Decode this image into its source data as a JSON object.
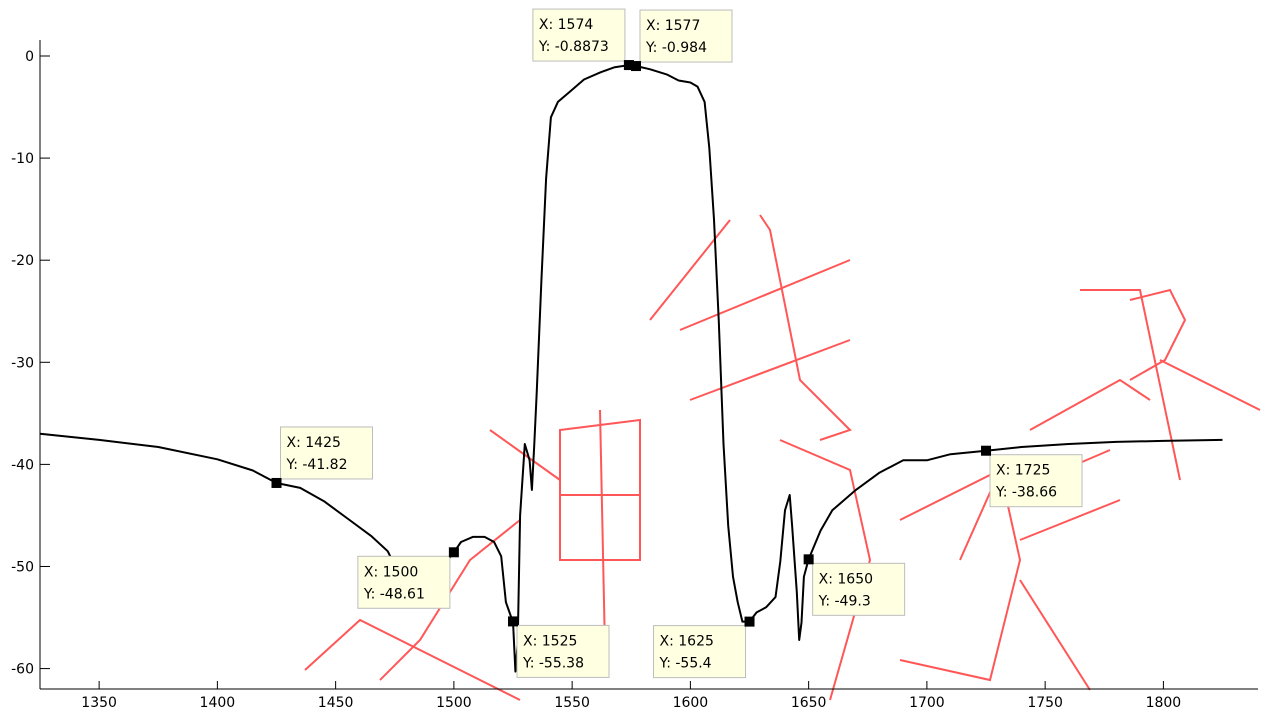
{
  "chart_data": {
    "type": "line",
    "title": "",
    "xlabel": "",
    "ylabel": "",
    "xlim": [
      1325,
      1840
    ],
    "ylim": [
      -62,
      0
    ],
    "xticks": [
      1350,
      1400,
      1450,
      1500,
      1550,
      1600,
      1650,
      1700,
      1750,
      1800
    ],
    "yticks": [
      0,
      -10,
      -20,
      -30,
      -40,
      -50,
      -60
    ],
    "grid": false,
    "series": [
      {
        "color": "#000000",
        "points": [
          [
            1325,
            -37.0
          ],
          [
            1350,
            -37.6
          ],
          [
            1375,
            -38.3
          ],
          [
            1400,
            -39.5
          ],
          [
            1415,
            -40.6
          ],
          [
            1425,
            -41.82
          ],
          [
            1435,
            -42.3
          ],
          [
            1445,
            -43.6
          ],
          [
            1455,
            -45.3
          ],
          [
            1465,
            -47.0
          ],
          [
            1472,
            -48.5
          ],
          [
            1477,
            -50.8
          ],
          [
            1480,
            -52.2
          ],
          [
            1485,
            -51.7
          ],
          [
            1490,
            -50.6
          ],
          [
            1496,
            -49.8
          ],
          [
            1500,
            -48.61
          ],
          [
            1503,
            -47.6
          ],
          [
            1508,
            -47.1
          ],
          [
            1513,
            -47.1
          ],
          [
            1517,
            -47.6
          ],
          [
            1520,
            -49.0
          ],
          [
            1522,
            -53.5
          ],
          [
            1524,
            -54.8
          ],
          [
            1525,
            -55.38
          ],
          [
            1526,
            -60.3
          ],
          [
            1527,
            -57.5
          ],
          [
            1528,
            -45.0
          ],
          [
            1530,
            -38.0
          ],
          [
            1532,
            -39.6
          ],
          [
            1533,
            -42.5
          ],
          [
            1534,
            -38.0
          ],
          [
            1535,
            -33.0
          ],
          [
            1537,
            -22.0
          ],
          [
            1539,
            -12.0
          ],
          [
            1541,
            -6.0
          ],
          [
            1544,
            -4.5
          ],
          [
            1549,
            -3.5
          ],
          [
            1555,
            -2.3
          ],
          [
            1562,
            -1.6
          ],
          [
            1568,
            -1.1
          ],
          [
            1574,
            -0.8873
          ],
          [
            1577,
            -0.984
          ],
          [
            1583,
            -1.3
          ],
          [
            1590,
            -1.8
          ],
          [
            1595,
            -2.4
          ],
          [
            1600,
            -2.6
          ],
          [
            1603,
            -3.0
          ],
          [
            1606,
            -4.5
          ],
          [
            1608,
            -9.0
          ],
          [
            1610,
            -16.0
          ],
          [
            1612,
            -26.0
          ],
          [
            1614,
            -38.0
          ],
          [
            1616,
            -46.0
          ],
          [
            1618,
            -51.0
          ],
          [
            1620,
            -53.5
          ],
          [
            1622,
            -55.4
          ],
          [
            1625,
            -55.4
          ],
          [
            1628,
            -54.5
          ],
          [
            1632,
            -54.0
          ],
          [
            1636,
            -53.0
          ],
          [
            1638,
            -49.5
          ],
          [
            1640,
            -44.5
          ],
          [
            1642,
            -43.0
          ],
          [
            1643,
            -46.0
          ],
          [
            1645,
            -52.5
          ],
          [
            1646,
            -57.2
          ],
          [
            1647,
            -55.5
          ],
          [
            1648,
            -51.0
          ],
          [
            1650,
            -49.3
          ],
          [
            1655,
            -46.5
          ],
          [
            1660,
            -44.5
          ],
          [
            1670,
            -42.5
          ],
          [
            1680,
            -40.8
          ],
          [
            1690,
            -39.6
          ],
          [
            1700,
            -39.6
          ],
          [
            1710,
            -39.0
          ],
          [
            1725,
            -38.66
          ],
          [
            1740,
            -38.3
          ],
          [
            1760,
            -38.0
          ],
          [
            1780,
            -37.8
          ],
          [
            1800,
            -37.7
          ],
          [
            1825,
            -37.6
          ]
        ]
      }
    ],
    "datatips": [
      {
        "x_text": "X: 1574",
        "y_text": "Y: -0.8873",
        "x": 1574,
        "y": -0.8873,
        "placement": "above-left"
      },
      {
        "x_text": "X: 1577",
        "y_text": "Y: -0.984",
        "x": 1577,
        "y": -0.984,
        "placement": "above-right"
      },
      {
        "x_text": "X: 1425",
        "y_text": "Y: -41.82",
        "x": 1425,
        "y": -41.82,
        "placement": "above-right"
      },
      {
        "x_text": "X: 1500",
        "y_text": "Y: -48.61",
        "x": 1500,
        "y": -48.61,
        "placement": "below-left"
      },
      {
        "x_text": "X: 1525",
        "y_text": "Y: -55.38",
        "x": 1525,
        "y": -55.38,
        "placement": "below-right"
      },
      {
        "x_text": "X: 1625",
        "y_text": "Y: -55.4",
        "x": 1625,
        "y": -55.4,
        "placement": "below-left"
      },
      {
        "x_text": "X: 1650",
        "y_text": "Y: -49.3",
        "x": 1650,
        "y": -49.3,
        "placement": "below-right"
      },
      {
        "x_text": "X: 1725",
        "y_text": "Y: -38.66",
        "x": 1725,
        "y": -38.66,
        "placement": "below-right"
      }
    ],
    "colors": {
      "line": "#000000",
      "datatip_fill": "#ffffe1",
      "datatip_border": "#bdbdbd",
      "watermark": "#ff3a3a"
    }
  }
}
